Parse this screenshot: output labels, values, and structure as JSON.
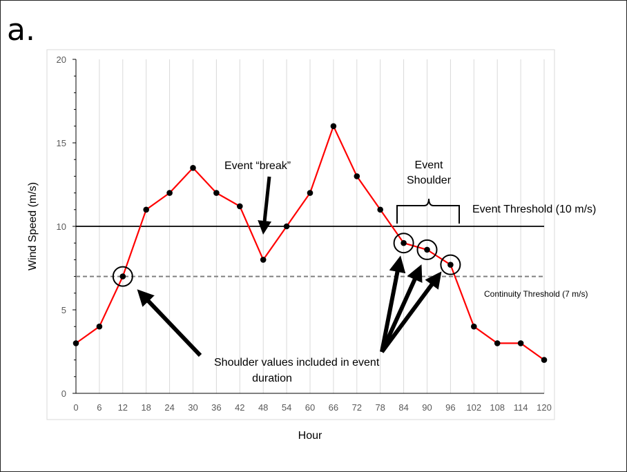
{
  "panel_label": "a.",
  "chart_data": {
    "type": "line",
    "title": "",
    "xlabel": "Hour",
    "ylabel": "Wind Speed (m/s)",
    "x": [
      0,
      6,
      12,
      18,
      24,
      30,
      36,
      42,
      48,
      54,
      60,
      66,
      72,
      78,
      84,
      90,
      96,
      102,
      108,
      114,
      120
    ],
    "xticks": [
      "0",
      "6",
      "12",
      "18",
      "24",
      "30",
      "36",
      "42",
      "48",
      "54",
      "60",
      "66",
      "72",
      "78",
      "84",
      "90",
      "96",
      "102",
      "108",
      "114",
      "120"
    ],
    "ylim": [
      0,
      20
    ],
    "yticks": [
      "0",
      "5",
      "10",
      "15",
      "20"
    ],
    "grid": "vertical",
    "series": [
      {
        "values": [
          3,
          4,
          7,
          11,
          12,
          13.5,
          12,
          11.2,
          8,
          10,
          12,
          16,
          13,
          11,
          9,
          8.6,
          7.7,
          4,
          3,
          3,
          2
        ],
        "color": "#ff0000",
        "marker_color": "#000000"
      }
    ],
    "thresholds": [
      {
        "value": 10,
        "label": "Event Threshold (10 m/s)",
        "style": "solid",
        "color": "#000000"
      },
      {
        "value": 7,
        "label": "Continuity Threshold (7 m/s)",
        "style": "dashed",
        "color": "#808080"
      }
    ],
    "annotations": {
      "break_label": "Event “break”",
      "shoulder_label_line1": "Event",
      "shoulder_label_line2": "Shoulder",
      "shoulder_values_line1": "Shoulder values included in event",
      "shoulder_values_line2": "duration",
      "circled_hours": [
        12,
        84,
        90,
        96
      ]
    }
  }
}
